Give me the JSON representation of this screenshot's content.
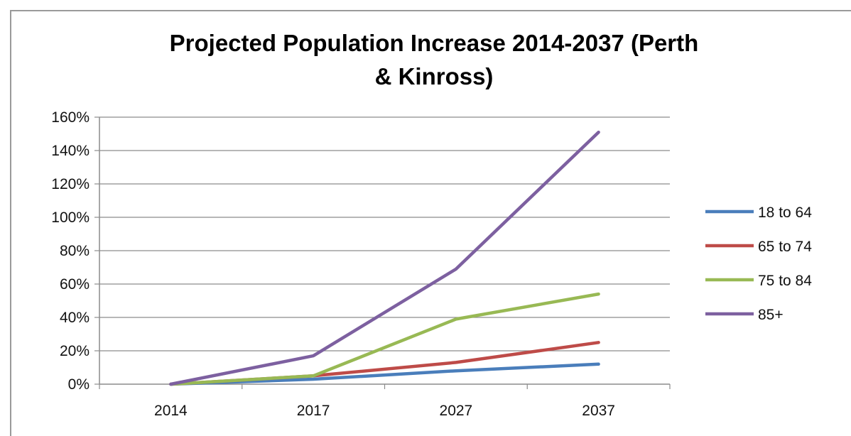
{
  "chart_data": {
    "type": "line",
    "title_lines": [
      "Projected Population Increase 2014-2037 (Perth",
      "& Kinross)"
    ],
    "categories": [
      "2014",
      "2017",
      "2027",
      "2037"
    ],
    "y_ticks": [
      "0%",
      "20%",
      "40%",
      "60%",
      "80%",
      "100%",
      "120%",
      "140%",
      "160%"
    ],
    "ylim": [
      0,
      160
    ],
    "y_unit": "%",
    "grid": "horizontal",
    "legend_position": "right",
    "series": [
      {
        "name": "18 to 64",
        "color": "#4a7ebb",
        "values": [
          0,
          3,
          8,
          12
        ]
      },
      {
        "name": "65 to 74",
        "color": "#be4b48",
        "values": [
          0,
          5,
          13,
          25
        ]
      },
      {
        "name": "75 to 84",
        "color": "#98b954",
        "values": [
          0,
          5,
          39,
          54
        ]
      },
      {
        "name": "85+",
        "color": "#7d60a0",
        "values": [
          0,
          17,
          69,
          151
        ]
      }
    ]
  }
}
